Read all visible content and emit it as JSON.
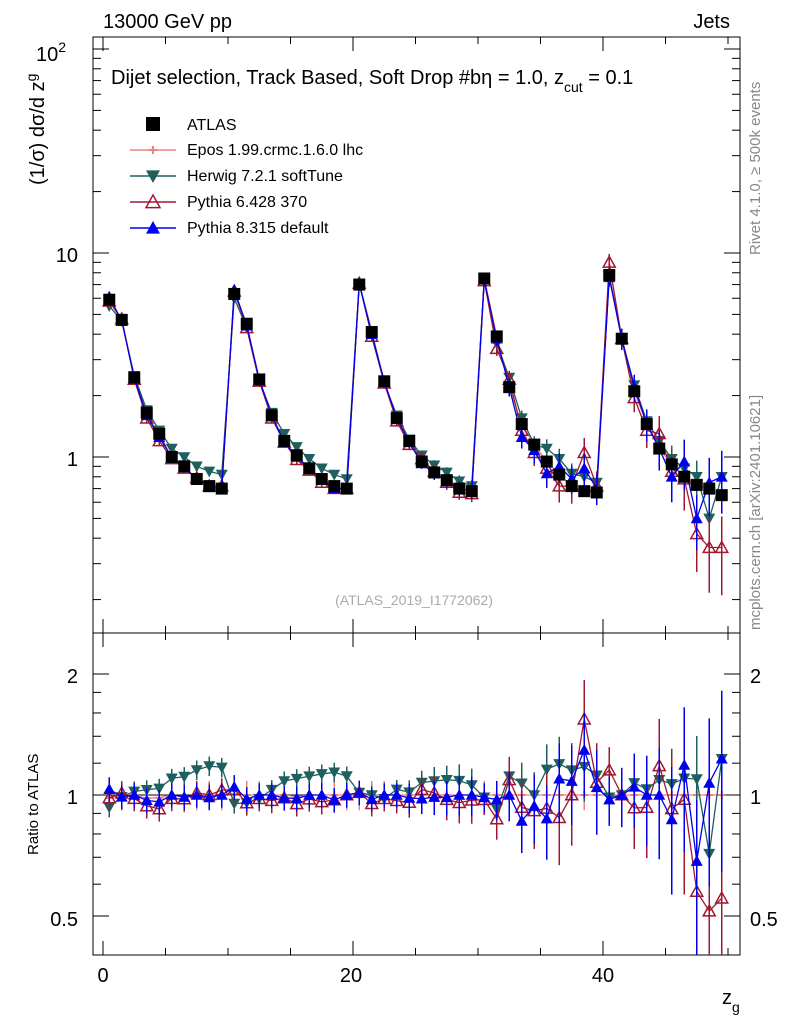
{
  "header": {
    "left": "13000 GeV pp",
    "right": "Jets",
    "side_top": "Rivet 4.1.0, ≥ 500k events",
    "side_bottom": "mcplots.cern.ch [arXiv:2401.10621]",
    "watermark": "(ATLAS_2019_I1772062)"
  },
  "main_panel": {
    "title": "Dijet selection, Track Based, Soft Drop #bη = 1.0, z",
    "title_sub": "cut",
    "title_tail": " = 0.1",
    "ylabel": "(1/σ) dσ/d z",
    "ylabel_sub": "g",
    "yticks": [
      {
        "base": "1",
        "exp": ""
      },
      {
        "base": "10",
        "exp": ""
      },
      {
        "base": "10",
        "exp": "2"
      }
    ]
  },
  "ratio_panel": {
    "ylabel": "Ratio to ATLAS",
    "yticks": [
      "0.5",
      "1",
      "2"
    ]
  },
  "xaxis": {
    "label": "z",
    "label_sub": "g",
    "ticks": [
      "0",
      "20",
      "40"
    ]
  },
  "legend": [
    {
      "label": "ATLAS",
      "color": "#000000",
      "marker": "square-filled"
    },
    {
      "label": "Epos 1.99.crmc.1.6.0 lhc",
      "color": "#f08080",
      "marker": "cross-open"
    },
    {
      "label": "Herwig 7.2.1 softTune",
      "color": "#1f5f5f",
      "marker": "triangle-down-filled"
    },
    {
      "label": "Pythia 6.428 370",
      "color": "#a01830",
      "marker": "triangle-up-open"
    },
    {
      "label": "Pythia 8.315 default",
      "color": "#0000ee",
      "marker": "triangle-up-filled"
    }
  ],
  "chart_data": {
    "type": "scatter",
    "x_range": [
      -1,
      51
    ],
    "y_range_main": [
      0.2,
      120
    ],
    "y_scale_main": "log",
    "y_range_ratio": [
      0.42,
      2.45
    ],
    "y_scale_ratio": "log",
    "x": [
      0.5,
      1.5,
      2.5,
      3.5,
      4.5,
      5.5,
      6.5,
      7.5,
      8.5,
      9.5,
      10.5,
      11.5,
      12.5,
      13.5,
      14.5,
      15.5,
      16.5,
      17.5,
      18.5,
      19.5,
      20.5,
      21.5,
      22.5,
      23.5,
      24.5,
      25.5,
      26.5,
      27.5,
      28.5,
      29.5,
      30.5,
      31.5,
      32.5,
      33.5,
      34.5,
      35.5,
      36.5,
      37.5,
      38.5,
      39.5,
      40.5,
      41.5,
      42.5,
      43.5,
      44.5,
      45.5,
      46.5,
      47.5,
      48.5,
      49.5
    ],
    "series": [
      {
        "name": "ATLAS",
        "values": [
          5.9,
          4.7,
          2.45,
          1.65,
          1.3,
          1.0,
          0.9,
          0.78,
          0.72,
          0.7,
          6.3,
          4.5,
          2.4,
          1.6,
          1.2,
          1.02,
          0.88,
          0.78,
          0.72,
          0.7,
          7.0,
          4.1,
          2.35,
          1.55,
          1.2,
          0.95,
          0.84,
          0.77,
          0.7,
          0.68,
          7.5,
          3.9,
          2.2,
          1.45,
          1.15,
          0.95,
          0.82,
          0.72,
          0.68,
          0.67,
          7.8,
          3.8,
          2.1,
          1.45,
          1.1,
          0.92,
          0.8,
          0.73,
          0.7,
          0.65
        ],
        "errors": [
          0.05,
          0.05,
          0.05,
          0.05,
          0.05,
          0.05,
          0.05,
          0.05,
          0.05,
          0.05,
          0.05,
          0.05,
          0.05,
          0.05,
          0.05,
          0.05,
          0.05,
          0.05,
          0.05,
          0.05,
          0.05,
          0.05,
          0.05,
          0.05,
          0.05,
          0.05,
          0.05,
          0.05,
          0.05,
          0.05,
          0.05,
          0.05,
          0.05,
          0.05,
          0.05,
          0.05,
          0.05,
          0.05,
          0.05,
          0.05,
          0.05,
          0.05,
          0.05,
          0.05,
          0.05,
          0.05,
          0.05,
          0.05,
          0.05,
          0.05
        ]
      },
      {
        "name": "Epos 1.99.crmc.1.6.0 lhc",
        "values": [
          5.8,
          4.7,
          2.45,
          1.62,
          1.28,
          1.0,
          0.89,
          0.78,
          0.72,
          0.7,
          6.3,
          4.5,
          2.4,
          1.6,
          1.2,
          1.01,
          0.88,
          0.78,
          0.72,
          0.7,
          7.0,
          4.1,
          2.35,
          1.55,
          1.2,
          0.95,
          0.84,
          0.77,
          0.7,
          0.68,
          7.5,
          3.9,
          2.2,
          1.45,
          1.15,
          0.95,
          0.82,
          0.72,
          0.68,
          0.67,
          7.8,
          3.8,
          2.1,
          1.45,
          1.1,
          0.92,
          0.8,
          0.73,
          0.7,
          0.65
        ],
        "errors": [
          0.06,
          0.06,
          0.06,
          0.06,
          0.06,
          0.06,
          0.06,
          0.06,
          0.06,
          0.06,
          0.06,
          0.06,
          0.06,
          0.06,
          0.06,
          0.06,
          0.06,
          0.06,
          0.06,
          0.06,
          0.06,
          0.06,
          0.06,
          0.06,
          0.06,
          0.06,
          0.06,
          0.06,
          0.06,
          0.06,
          0.06,
          0.06,
          0.06,
          0.06,
          0.06,
          0.06,
          0.06,
          0.06,
          0.06,
          0.06,
          0.06,
          0.06,
          0.06,
          0.06,
          0.06,
          0.06,
          0.06,
          0.06,
          0.06,
          0.06
        ]
      },
      {
        "name": "Herwig 7.2.1 softTune",
        "values": [
          5.5,
          4.65,
          2.5,
          1.7,
          1.35,
          1.1,
          1.0,
          0.9,
          0.85,
          0.82,
          6.0,
          4.3,
          2.35,
          1.65,
          1.3,
          1.12,
          0.98,
          0.88,
          0.82,
          0.78,
          7.1,
          4.1,
          2.3,
          1.6,
          1.22,
          1.02,
          0.91,
          0.84,
          0.76,
          0.72,
          7.4,
          3.6,
          2.45,
          1.55,
          1.15,
          1.1,
          0.98,
          0.83,
          0.8,
          0.75,
          7.7,
          3.8,
          2.25,
          1.5,
          1.2,
          0.98,
          0.88,
          0.8,
          0.5,
          0.8
        ],
        "errors": [
          0.04,
          0.04,
          0.04,
          0.04,
          0.04,
          0.04,
          0.04,
          0.04,
          0.04,
          0.04,
          0.04,
          0.04,
          0.04,
          0.04,
          0.04,
          0.04,
          0.04,
          0.04,
          0.04,
          0.04,
          0.04,
          0.04,
          0.04,
          0.04,
          0.05,
          0.05,
          0.06,
          0.06,
          0.07,
          0.07,
          0.06,
          0.07,
          0.08,
          0.09,
          0.1,
          0.11,
          0.12,
          0.12,
          0.13,
          0.13,
          0.08,
          0.09,
          0.1,
          0.12,
          0.14,
          0.16,
          0.18,
          0.2,
          0.22,
          0.24
        ]
      },
      {
        "name": "Pythia 6.428 370",
        "values": [
          5.8,
          4.75,
          2.4,
          1.55,
          1.2,
          0.98,
          0.88,
          0.79,
          0.72,
          0.72,
          6.5,
          4.3,
          2.35,
          1.55,
          1.18,
          0.97,
          0.86,
          0.75,
          0.7,
          0.7,
          7.1,
          3.9,
          2.3,
          1.5,
          1.15,
          0.98,
          0.85,
          0.75,
          0.67,
          0.66,
          7.3,
          3.4,
          2.4,
          1.35,
          1.05,
          0.88,
          0.72,
          0.72,
          1.05,
          0.72,
          9.0,
          3.8,
          1.95,
          1.35,
          1.3,
          0.85,
          0.78,
          0.42,
          0.36,
          0.36
        ],
        "errors": [
          0.05,
          0.05,
          0.05,
          0.05,
          0.05,
          0.05,
          0.05,
          0.05,
          0.05,
          0.05,
          0.05,
          0.05,
          0.05,
          0.05,
          0.05,
          0.05,
          0.05,
          0.05,
          0.05,
          0.05,
          0.05,
          0.05,
          0.05,
          0.05,
          0.06,
          0.06,
          0.07,
          0.08,
          0.08,
          0.09,
          0.06,
          0.08,
          0.1,
          0.12,
          0.14,
          0.16,
          0.17,
          0.18,
          0.18,
          0.18,
          0.1,
          0.12,
          0.15,
          0.18,
          0.22,
          0.26,
          0.3,
          0.35,
          0.4,
          0.42
        ]
      },
      {
        "name": "Pythia 8.315 default",
        "values": [
          6.1,
          4.65,
          2.45,
          1.6,
          1.25,
          1.0,
          0.89,
          0.78,
          0.71,
          0.7,
          6.6,
          4.4,
          2.4,
          1.6,
          1.18,
          1.0,
          0.88,
          0.78,
          0.7,
          0.7,
          7.1,
          4.0,
          2.35,
          1.55,
          1.18,
          0.93,
          0.83,
          0.76,
          0.7,
          0.68,
          7.4,
          3.8,
          2.2,
          1.25,
          1.08,
          0.83,
          0.9,
          0.78,
          0.88,
          0.7,
          7.6,
          3.8,
          2.2,
          1.45,
          1.1,
          0.8,
          0.95,
          0.5,
          0.75,
          0.8
        ],
        "errors": [
          0.05,
          0.05,
          0.05,
          0.05,
          0.05,
          0.05,
          0.05,
          0.05,
          0.05,
          0.05,
          0.05,
          0.05,
          0.05,
          0.05,
          0.05,
          0.05,
          0.05,
          0.05,
          0.05,
          0.05,
          0.05,
          0.05,
          0.05,
          0.05,
          0.06,
          0.06,
          0.07,
          0.07,
          0.08,
          0.08,
          0.06,
          0.08,
          0.1,
          0.12,
          0.14,
          0.15,
          0.16,
          0.16,
          0.17,
          0.17,
          0.1,
          0.12,
          0.15,
          0.18,
          0.22,
          0.25,
          0.28,
          0.3,
          0.32,
          0.34
        ]
      }
    ]
  }
}
